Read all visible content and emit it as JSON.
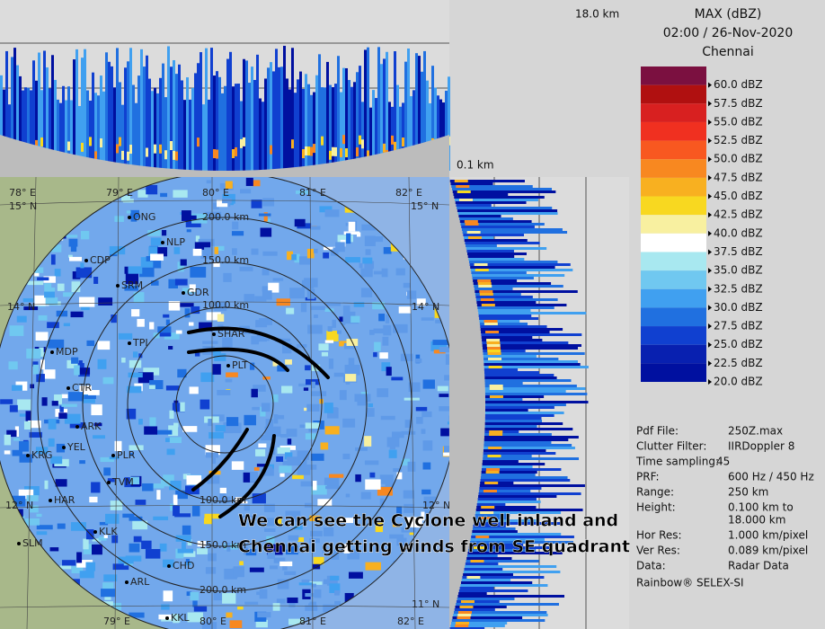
{
  "header": {
    "title": "MAX (dBZ)",
    "time": "02:00 / 26-Nov-2020",
    "site": "Chennai"
  },
  "profile_labels": {
    "top_height": "18.0 km",
    "side_height": "0.1 km"
  },
  "legend": {
    "labels": [
      "60.0 dBZ",
      "57.5 dBZ",
      "55.0 dBZ",
      "52.5 dBZ",
      "50.0 dBZ",
      "47.5 dBZ",
      "45.0 dBZ",
      "42.5 dBZ",
      "40.0 dBZ",
      "37.5 dBZ",
      "35.0 dBZ",
      "32.5 dBZ",
      "30.0 dBZ",
      "27.5 dBZ",
      "25.0 dBZ",
      "22.5 dBZ",
      "20.0 dBZ"
    ],
    "colors": [
      "#7b1040",
      "#b01010",
      "#d82020",
      "#f03020",
      "#f85820",
      "#f88820",
      "#f8b020",
      "#f8d820",
      "#f8f0a0",
      "#ffffff",
      "#a8e8f0",
      "#70c8f0",
      "#40a0f0",
      "#2070e0",
      "#1040d0",
      "#0820b0",
      "#0010a0"
    ]
  },
  "info": [
    {
      "label": "Pdf File:",
      "value": [
        "250Z.max"
      ]
    },
    {
      "label": "Clutter Filter:",
      "value": [
        "IIRDoppler 8"
      ]
    },
    {
      "label": "Time sampling:",
      "value": [
        "45"
      ]
    },
    {
      "label": "PRF:",
      "value": [
        "600 Hz / 450 Hz"
      ]
    },
    {
      "label": "Range:",
      "value": [
        "250 km"
      ]
    },
    {
      "label": "Height:",
      "value": [
        "0.100 km to",
        "18.000 km"
      ]
    },
    {
      "label": "Hor Res:",
      "value": [
        "1.000 km/pixel"
      ]
    },
    {
      "label": "Ver Res:",
      "value": [
        "0.089 km/pixel"
      ]
    },
    {
      "label": "Data:",
      "value": [
        "Radar Data"
      ]
    }
  ],
  "footer": "Rainbow® SELEX-SI",
  "map": {
    "grid_labels": [
      "78° E",
      "79° E",
      "80° E",
      "81° E",
      "82° E",
      "15° N",
      "15° N",
      "14° N",
      "14° N",
      "12° N",
      "12° N",
      "11° N",
      "79° E",
      "80° E",
      "81° E",
      "82° E"
    ],
    "range_labels": [
      "200.0 km",
      "150.0 km",
      "100.0 km",
      "100.0 km",
      "150.0 km",
      "200.0 km"
    ],
    "places": [
      "ONG",
      "NLP",
      "CDP",
      "SRM",
      "GDR",
      "SHAR",
      "PLT",
      "MDP",
      "TPI",
      "CTR",
      "KLK",
      "SLM",
      "YEL",
      "KRG",
      "PLR",
      "ARL",
      "CHD",
      "KKL",
      "HAR",
      "ARK",
      "TVM"
    ]
  },
  "annotation": [
    "We can see the Cyclone well inland and",
    "Chennai getting winds from SE quadrant"
  ]
}
